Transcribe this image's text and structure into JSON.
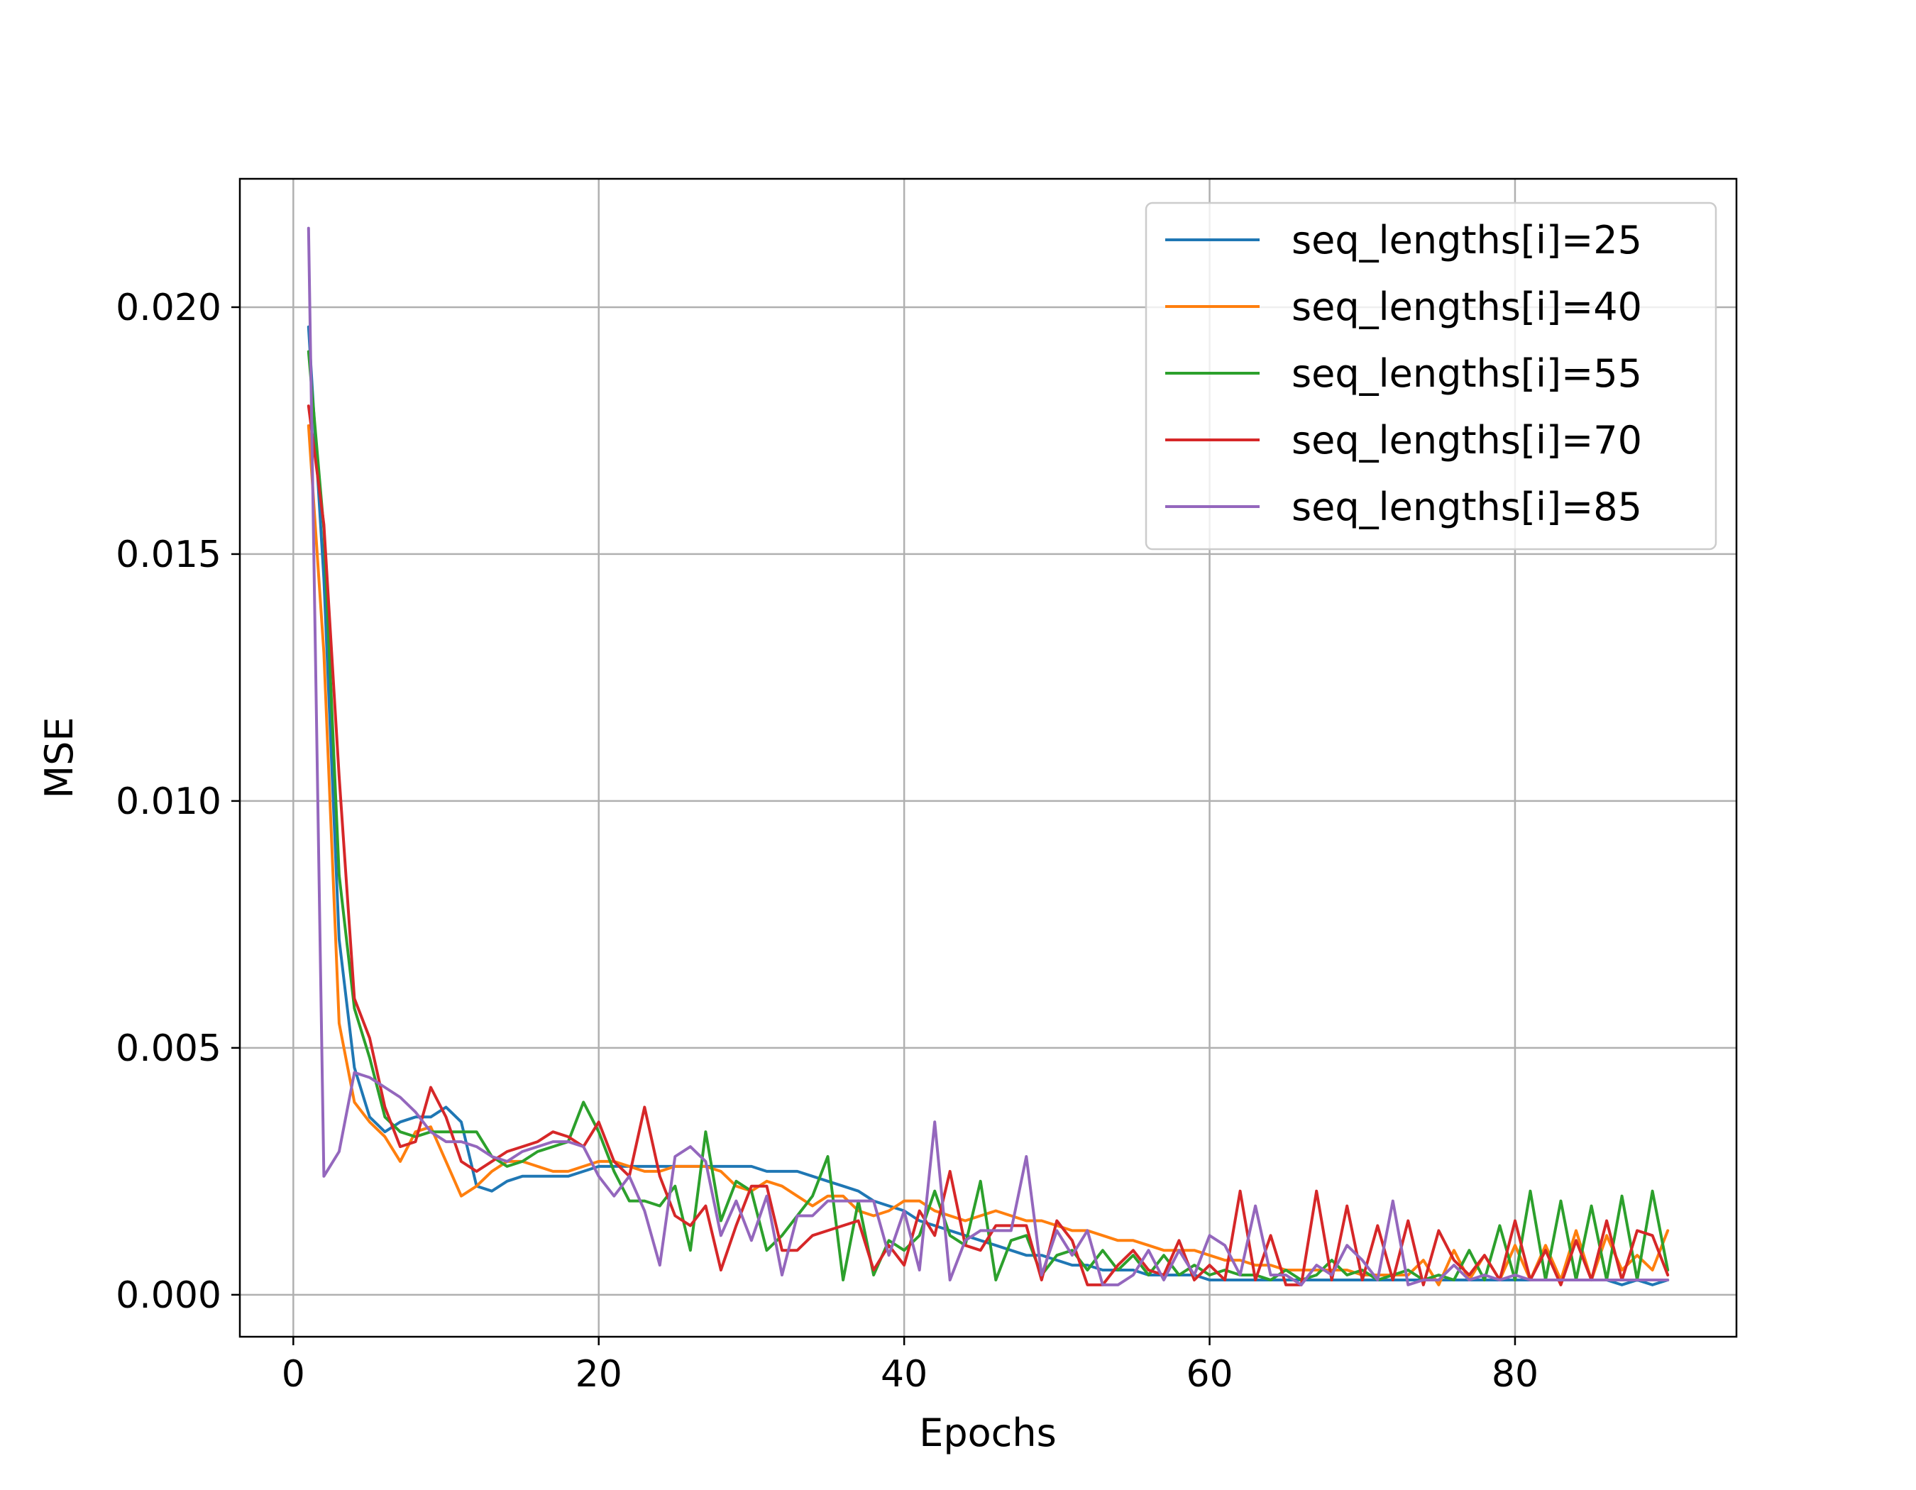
{
  "chart_data": {
    "type": "line",
    "title": "",
    "xlabel": "Epochs",
    "ylabel": "MSE",
    "xlim": [
      -3.5,
      94.5
    ],
    "ylim": [
      -0.00085,
      0.0226
    ],
    "xticks": [
      0,
      20,
      40,
      60,
      80
    ],
    "xtick_labels": [
      "0",
      "20",
      "40",
      "60",
      "80"
    ],
    "yticks": [
      0.0,
      0.005,
      0.01,
      0.015,
      0.02
    ],
    "ytick_labels": [
      "0.000",
      "0.005",
      "0.010",
      "0.015",
      "0.020"
    ],
    "grid": true,
    "legend": "top-right",
    "x": [
      1,
      2,
      3,
      4,
      5,
      6,
      7,
      8,
      9,
      10,
      11,
      12,
      13,
      14,
      15,
      16,
      17,
      18,
      19,
      20,
      21,
      22,
      23,
      24,
      25,
      26,
      27,
      28,
      29,
      30,
      31,
      32,
      33,
      34,
      35,
      36,
      37,
      38,
      39,
      40,
      41,
      42,
      43,
      44,
      45,
      46,
      47,
      48,
      49,
      50,
      51,
      52,
      53,
      54,
      55,
      56,
      57,
      58,
      59,
      60,
      61,
      62,
      63,
      64,
      65,
      66,
      67,
      68,
      69,
      70,
      71,
      72,
      73,
      74,
      75,
      76,
      77,
      78,
      79,
      80,
      81,
      82,
      83,
      84,
      85,
      86,
      87,
      88,
      89,
      90
    ],
    "series": [
      {
        "name": "seq_lengths[i]=25",
        "color": "#1f77b4",
        "values": [
          0.0196,
          0.0145,
          0.0072,
          0.0046,
          0.0036,
          0.0033,
          0.0035,
          0.0036,
          0.0036,
          0.0038,
          0.0035,
          0.0022,
          0.0021,
          0.0023,
          0.0024,
          0.0024,
          0.0024,
          0.0024,
          0.0025,
          0.0026,
          0.0026,
          0.0026,
          0.0026,
          0.0026,
          0.0026,
          0.0026,
          0.0026,
          0.0026,
          0.0026,
          0.0026,
          0.0025,
          0.0025,
          0.0025,
          0.0024,
          0.0023,
          0.0022,
          0.0021,
          0.0019,
          0.0018,
          0.0017,
          0.0015,
          0.0014,
          0.0013,
          0.0012,
          0.0011,
          0.001,
          0.0009,
          0.0008,
          0.0008,
          0.0007,
          0.0006,
          0.0006,
          0.0005,
          0.0005,
          0.0005,
          0.0004,
          0.0004,
          0.0004,
          0.0004,
          0.0003,
          0.0003,
          0.0003,
          0.0003,
          0.0003,
          0.0003,
          0.0003,
          0.0003,
          0.0003,
          0.0003,
          0.0003,
          0.0003,
          0.0003,
          0.0003,
          0.0003,
          0.0003,
          0.0003,
          0.0003,
          0.0003,
          0.0003,
          0.0003,
          0.0003,
          0.0003,
          0.0003,
          0.0003,
          0.0003,
          0.0003,
          0.0002,
          0.0003,
          0.0002,
          0.0003
        ]
      },
      {
        "name": "seq_lengths[i]=40",
        "color": "#ff7f0e",
        "values": [
          0.0176,
          0.013,
          0.0055,
          0.0039,
          0.0035,
          0.0032,
          0.0027,
          0.0033,
          0.0034,
          0.0027,
          0.002,
          0.0022,
          0.0025,
          0.0027,
          0.0027,
          0.0026,
          0.0025,
          0.0025,
          0.0026,
          0.0027,
          0.0027,
          0.0026,
          0.0025,
          0.0025,
          0.0026,
          0.0026,
          0.0026,
          0.0025,
          0.0022,
          0.0021,
          0.0023,
          0.0022,
          0.002,
          0.0018,
          0.002,
          0.002,
          0.0017,
          0.0016,
          0.0017,
          0.0019,
          0.0019,
          0.0017,
          0.0016,
          0.0015,
          0.0016,
          0.0017,
          0.0016,
          0.0015,
          0.0015,
          0.0014,
          0.0013,
          0.0013,
          0.0012,
          0.0011,
          0.0011,
          0.001,
          0.0009,
          0.0009,
          0.0009,
          0.0008,
          0.0007,
          0.0007,
          0.0006,
          0.0006,
          0.0005,
          0.0005,
          0.0005,
          0.0005,
          0.0005,
          0.0004,
          0.0004,
          0.0004,
          0.0004,
          0.0007,
          0.0002,
          0.0009,
          0.0003,
          0.0008,
          0.0003,
          0.001,
          0.0003,
          0.001,
          0.0003,
          0.0013,
          0.0003,
          0.0012,
          0.0005,
          0.0008,
          0.0005,
          0.0013
        ]
      },
      {
        "name": "seq_lengths[i]=55",
        "color": "#2ca02c",
        "values": [
          0.0191,
          0.0155,
          0.0085,
          0.0058,
          0.0048,
          0.0036,
          0.0033,
          0.0032,
          0.0033,
          0.0033,
          0.0033,
          0.0033,
          0.0028,
          0.0026,
          0.0027,
          0.0029,
          0.003,
          0.0031,
          0.0039,
          0.0033,
          0.0025,
          0.0019,
          0.0019,
          0.0018,
          0.0022,
          0.0009,
          0.0033,
          0.0015,
          0.0023,
          0.0021,
          0.0009,
          0.0012,
          0.0016,
          0.002,
          0.0028,
          0.0003,
          0.0019,
          0.0004,
          0.0011,
          0.0009,
          0.0012,
          0.0021,
          0.0012,
          0.001,
          0.0023,
          0.0003,
          0.0011,
          0.0012,
          0.0004,
          0.0008,
          0.0009,
          0.0005,
          0.0009,
          0.0005,
          0.0008,
          0.0004,
          0.0008,
          0.0004,
          0.0006,
          0.0004,
          0.0005,
          0.0004,
          0.0004,
          0.0003,
          0.0005,
          0.0003,
          0.0004,
          0.0007,
          0.0004,
          0.0005,
          0.0003,
          0.0004,
          0.0005,
          0.0003,
          0.0004,
          0.0003,
          0.0009,
          0.0003,
          0.0014,
          0.0003,
          0.0021,
          0.0003,
          0.0019,
          0.0003,
          0.0018,
          0.0003,
          0.002,
          0.0003,
          0.0021,
          0.0005
        ]
      },
      {
        "name": "seq_lengths[i]=70",
        "color": "#d62728",
        "values": [
          0.018,
          0.0156,
          0.0105,
          0.006,
          0.0052,
          0.0038,
          0.003,
          0.0031,
          0.0042,
          0.0036,
          0.0027,
          0.0025,
          0.0027,
          0.0029,
          0.003,
          0.0031,
          0.0033,
          0.0032,
          0.003,
          0.0035,
          0.0027,
          0.0024,
          0.0038,
          0.0024,
          0.0016,
          0.0014,
          0.0018,
          0.0005,
          0.0014,
          0.0022,
          0.0022,
          0.0009,
          0.0009,
          0.0012,
          0.0013,
          0.0014,
          0.0015,
          0.0005,
          0.001,
          0.0006,
          0.0017,
          0.0012,
          0.0025,
          0.001,
          0.0009,
          0.0014,
          0.0014,
          0.0014,
          0.0003,
          0.0015,
          0.0011,
          0.0002,
          0.0002,
          0.0006,
          0.0009,
          0.0005,
          0.0004,
          0.0011,
          0.0003,
          0.0006,
          0.0003,
          0.0021,
          0.0003,
          0.0012,
          0.0002,
          0.0002,
          0.0021,
          0.0003,
          0.0018,
          0.0003,
          0.0014,
          0.0003,
          0.0015,
          0.0002,
          0.0013,
          0.0007,
          0.0004,
          0.0008,
          0.0003,
          0.0015,
          0.0003,
          0.0009,
          0.0002,
          0.0011,
          0.0003,
          0.0015,
          0.0003,
          0.0013,
          0.0012,
          0.0004
        ]
      },
      {
        "name": "seq_lengths[i]=85",
        "color": "#9467bd",
        "values": [
          0.0216,
          0.0024,
          0.0029,
          0.0045,
          0.0044,
          0.0042,
          0.004,
          0.0037,
          0.0033,
          0.0031,
          0.0031,
          0.003,
          0.0028,
          0.0027,
          0.0029,
          0.003,
          0.0031,
          0.0031,
          0.003,
          0.0024,
          0.002,
          0.0024,
          0.0017,
          0.0006,
          0.0028,
          0.003,
          0.0027,
          0.0012,
          0.0019,
          0.0011,
          0.002,
          0.0004,
          0.0016,
          0.0016,
          0.0019,
          0.0019,
          0.0019,
          0.0019,
          0.0008,
          0.0017,
          0.0005,
          0.0035,
          0.0003,
          0.0011,
          0.0013,
          0.0013,
          0.0013,
          0.0028,
          0.0004,
          0.0013,
          0.0008,
          0.0013,
          0.0002,
          0.0002,
          0.0004,
          0.0009,
          0.0003,
          0.0009,
          0.0004,
          0.0012,
          0.001,
          0.0004,
          0.0018,
          0.0004,
          0.0004,
          0.0002,
          0.0006,
          0.0004,
          0.001,
          0.0007,
          0.0003,
          0.0019,
          0.0002,
          0.0003,
          0.0003,
          0.0006,
          0.0003,
          0.0004,
          0.0003,
          0.0004,
          0.0003,
          0.0003,
          0.0003,
          0.0003,
          0.0003,
          0.0003,
          0.0003,
          0.0003,
          0.0003,
          0.0003
        ]
      }
    ]
  }
}
